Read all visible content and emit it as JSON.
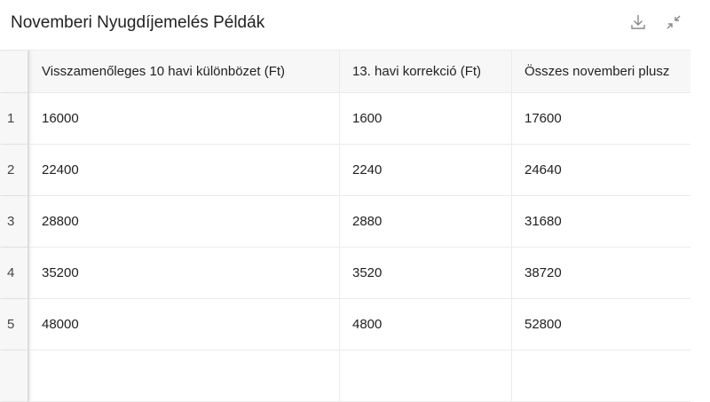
{
  "title": "Novemberi Nyugdíjemelés Példák",
  "toolbar": {
    "download_icon": "download-icon",
    "collapse_icon": "collapse-icon"
  },
  "table": {
    "columns": [
      "Visszamenőleges 10 havi különbözet (Ft)",
      "13. havi korrekció (Ft)",
      "Összes novemberi plusz"
    ],
    "rows": [
      {
        "index": "1",
        "cells": [
          "16000",
          "1600",
          "17600"
        ]
      },
      {
        "index": "2",
        "cells": [
          "22400",
          "2240",
          "24640"
        ]
      },
      {
        "index": "3",
        "cells": [
          "28800",
          "2880",
          "31680"
        ]
      },
      {
        "index": "4",
        "cells": [
          "35200",
          "3520",
          "38720"
        ]
      },
      {
        "index": "5",
        "cells": [
          "48000",
          "4800",
          "52800"
        ]
      }
    ]
  }
}
